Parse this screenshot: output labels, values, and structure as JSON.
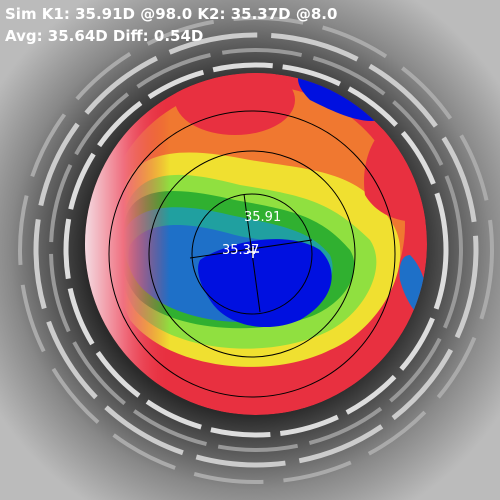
{
  "header": {
    "line1": "Sim K1: 35.91D @98.0 K2: 35.37D @8.0",
    "line2": "Avg: 35.64D Diff: 0.54D"
  },
  "map_labels": {
    "k1": "35.91",
    "k2": "35.37"
  }
}
